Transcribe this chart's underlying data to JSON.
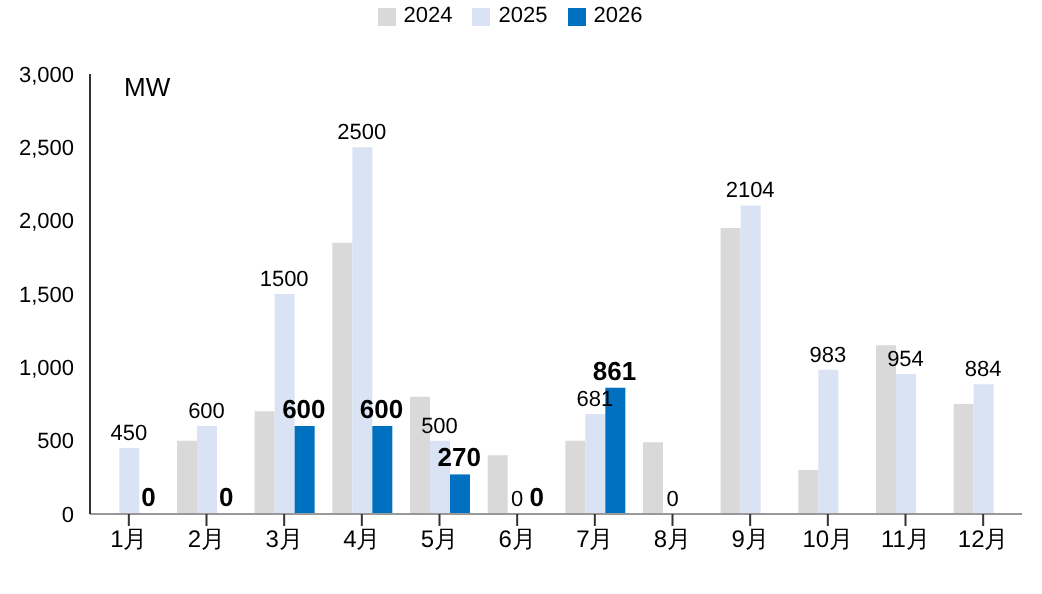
{
  "chart_data": {
    "type": "bar",
    "ylabel": "MW",
    "categories": [
      "1月",
      "2月",
      "3月",
      "4月",
      "5月",
      "6月",
      "7月",
      "8月",
      "9月",
      "10月",
      "11月",
      "12月"
    ],
    "series": [
      {
        "name": "2024",
        "color": "#d9d9d9",
        "values": [
          null,
          500,
          700,
          1850,
          800,
          400,
          500,
          490,
          1950,
          300,
          1150,
          750
        ]
      },
      {
        "name": "2025",
        "color": "#dae3f3",
        "values": [
          450,
          600,
          1500,
          2500,
          500,
          0,
          681,
          0,
          2104,
          983,
          954,
          884
        ],
        "value_labels": [
          "450",
          "600",
          "1500",
          "2500",
          "500",
          "0",
          "681",
          "0",
          "2104",
          "983",
          "954",
          "884"
        ]
      },
      {
        "name": "2026",
        "color": "#0070c0",
        "values": [
          0,
          0,
          600,
          600,
          270,
          0,
          861,
          null,
          null,
          null,
          null,
          null
        ],
        "value_labels": [
          "0",
          "0",
          "600",
          "600",
          "270",
          "0",
          "861",
          null,
          null,
          null,
          null,
          null
        ]
      }
    ],
    "ylim": [
      0,
      3000
    ],
    "yticks": [
      0,
      {
        "value": 500,
        "label": "500"
      },
      {
        "value": 1000,
        "label": "1,000"
      },
      {
        "value": 1500,
        "label": "1,500"
      },
      {
        "value": 2000,
        "label": "2,000"
      },
      {
        "value": 2500,
        "label": "2,500"
      },
      {
        "value": 3000,
        "label": "3,000"
      }
    ],
    "grid": false,
    "legend": "top"
  }
}
